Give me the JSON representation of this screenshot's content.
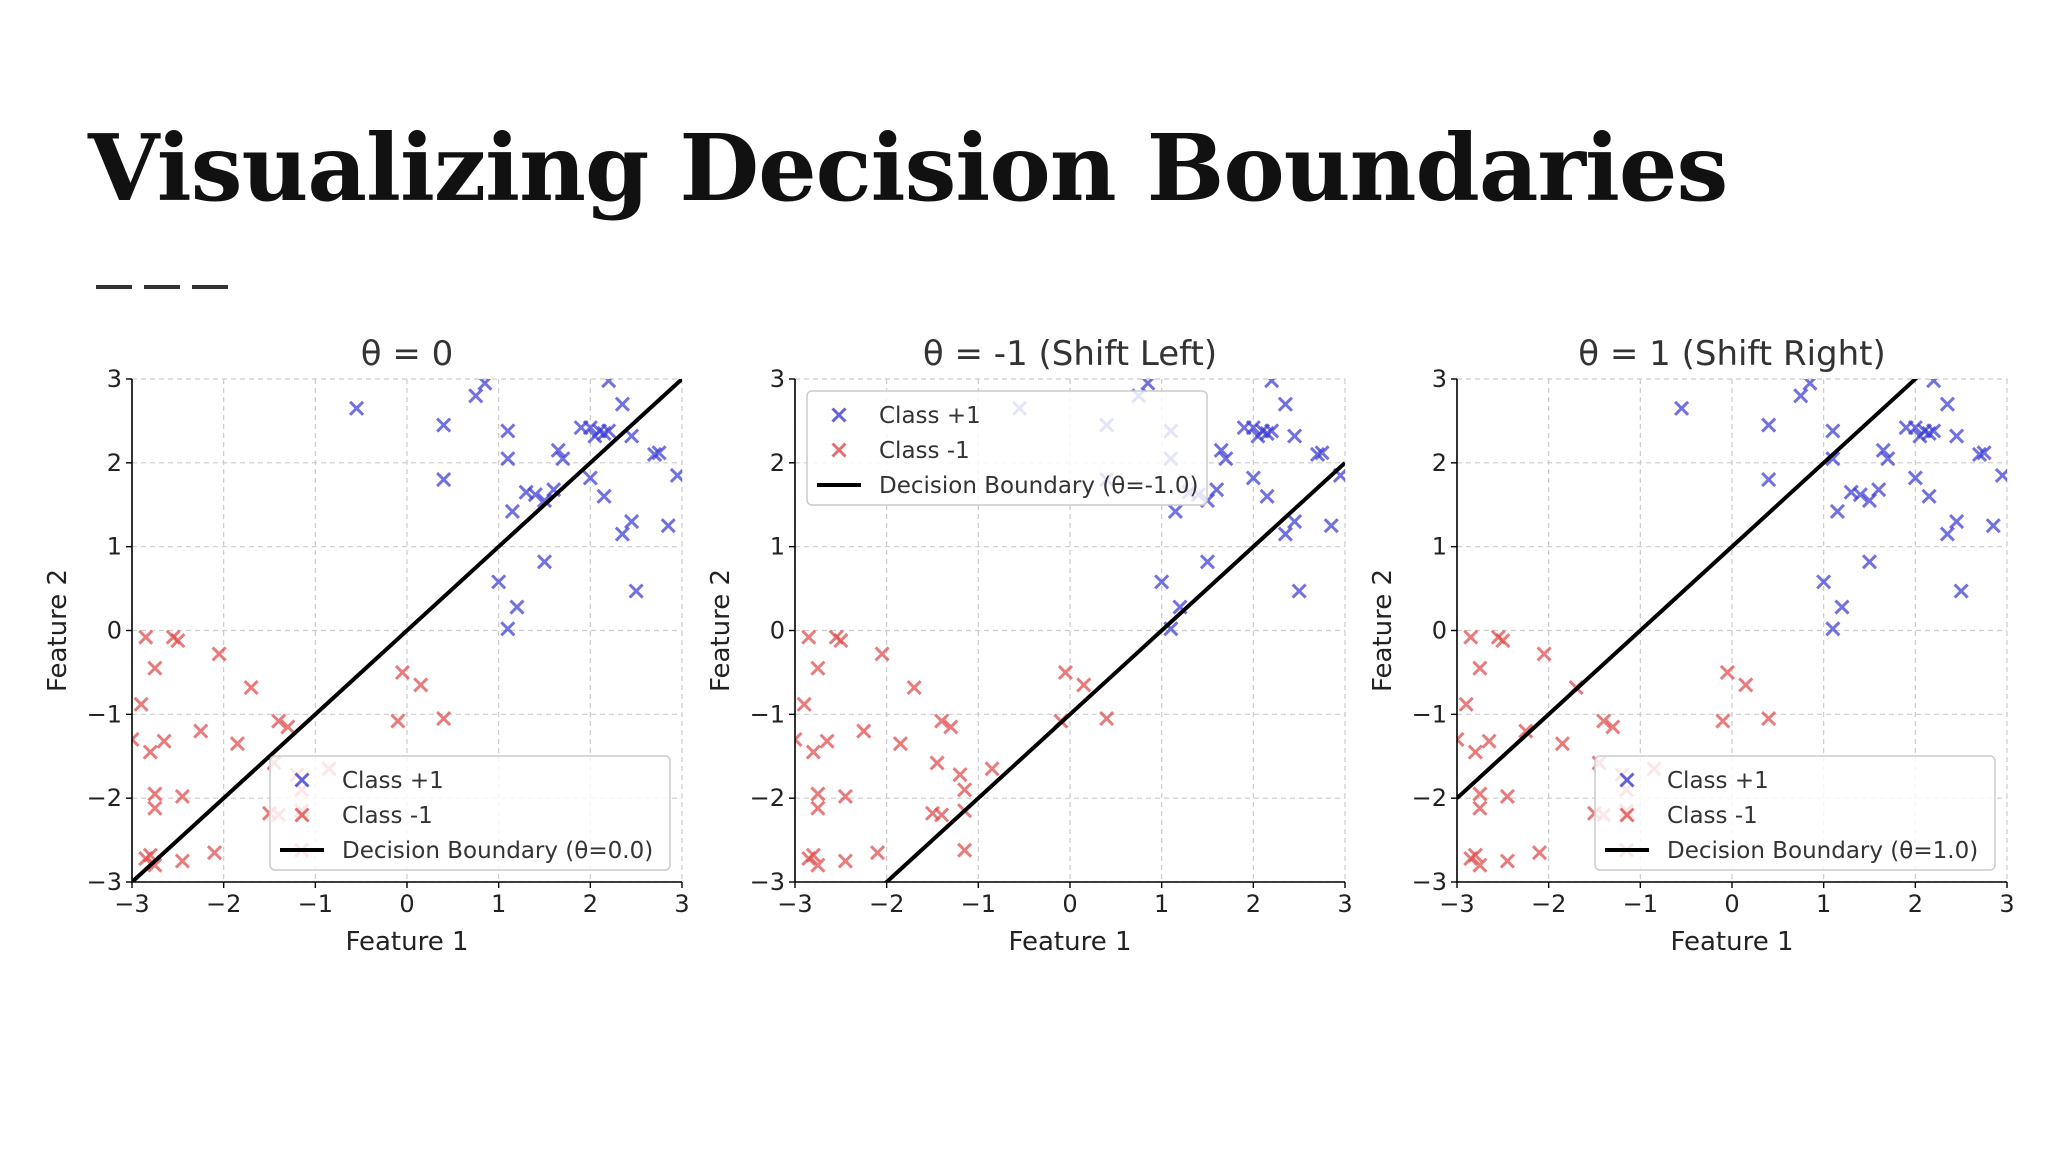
{
  "slide": {
    "title": "Visualizing Decision Boundaries"
  },
  "colors": {
    "class_pos": "#3b3bd6",
    "class_neg": "#e04a4a",
    "boundary": "#000000",
    "grid": "#cccccc",
    "title_text": "#111111"
  },
  "points": {
    "class_pos": [
      [
        -0.55,
        2.65
      ],
      [
        0.4,
        2.45
      ],
      [
        0.4,
        1.8
      ],
      [
        0.75,
        2.8
      ],
      [
        0.85,
        2.95
      ],
      [
        1.1,
        2.38
      ],
      [
        1.1,
        2.05
      ],
      [
        1.15,
        1.42
      ],
      [
        1.3,
        1.65
      ],
      [
        1.4,
        1.62
      ],
      [
        1.5,
        1.55
      ],
      [
        1.6,
        1.68
      ],
      [
        1.65,
        2.15
      ],
      [
        1.7,
        2.05
      ],
      [
        1.9,
        2.42
      ],
      [
        2.0,
        2.42
      ],
      [
        2.05,
        2.32
      ],
      [
        2.1,
        2.38
      ],
      [
        2.15,
        2.35
      ],
      [
        2.2,
        2.38
      ],
      [
        2.0,
        1.82
      ],
      [
        2.15,
        1.6
      ],
      [
        2.2,
        2.98
      ],
      [
        2.35,
        2.7
      ],
      [
        2.45,
        2.32
      ],
      [
        2.7,
        2.1
      ],
      [
        2.75,
        2.12
      ],
      [
        2.35,
        1.15
      ],
      [
        2.45,
        1.3
      ],
      [
        2.85,
        1.25
      ],
      [
        2.95,
        1.85
      ],
      [
        1.0,
        0.58
      ],
      [
        1.2,
        0.28
      ],
      [
        1.1,
        0.02
      ],
      [
        1.5,
        0.82
      ],
      [
        2.5,
        0.47
      ]
    ],
    "class_neg": [
      [
        -2.85,
        -0.08
      ],
      [
        -2.75,
        -0.45
      ],
      [
        -2.9,
        -0.88
      ],
      [
        -2.65,
        -1.32
      ],
      [
        -2.8,
        -1.45
      ],
      [
        -2.5,
        -0.12
      ],
      [
        -2.55,
        -0.08
      ],
      [
        -2.05,
        -0.28
      ],
      [
        -1.7,
        -0.68
      ],
      [
        -1.85,
        -1.35
      ],
      [
        -2.25,
        -1.2
      ],
      [
        -1.4,
        -1.08
      ],
      [
        -1.3,
        -1.15
      ],
      [
        -1.45,
        -1.58
      ],
      [
        -1.2,
        -1.72
      ],
      [
        -1.15,
        -1.9
      ],
      [
        -1.5,
        -2.18
      ],
      [
        -1.4,
        -2.2
      ],
      [
        -1.15,
        -2.15
      ],
      [
        -1.15,
        -2.62
      ],
      [
        -2.75,
        -1.95
      ],
      [
        -2.75,
        -2.12
      ],
      [
        -2.45,
        -1.98
      ],
      [
        -2.8,
        -2.68
      ],
      [
        -2.75,
        -2.8
      ],
      [
        -2.85,
        -2.72
      ],
      [
        -2.45,
        -2.75
      ],
      [
        -2.1,
        -2.65
      ],
      [
        -0.85,
        -1.65
      ],
      [
        -0.05,
        -0.5
      ],
      [
        0.15,
        -0.65
      ],
      [
        0.4,
        -1.05
      ],
      [
        -0.1,
        -1.08
      ],
      [
        -3.0,
        -1.3
      ]
    ]
  },
  "chart_data": [
    {
      "type": "scatter",
      "title": "θ = 0",
      "xlabel": "Feature 1",
      "ylabel": "Feature 2",
      "xlim": [
        -3,
        3
      ],
      "ylim": [
        -3,
        3
      ],
      "xticks": [
        -3,
        -2,
        -1,
        0,
        1,
        2,
        3
      ],
      "yticks": [
        -3,
        -2,
        -1,
        0,
        1,
        2,
        3
      ],
      "grid": true,
      "theta": 0.0,
      "boundary": "y = x + θ",
      "legend_position": "bottom-right",
      "legend": [
        "Class +1",
        "Class -1",
        "Decision Boundary (θ=0.0)"
      ]
    },
    {
      "type": "scatter",
      "title": "θ = -1 (Shift Left)",
      "xlabel": "Feature 1",
      "ylabel": "Feature 2",
      "xlim": [
        -3,
        3
      ],
      "ylim": [
        -3,
        3
      ],
      "xticks": [
        -3,
        -2,
        -1,
        0,
        1,
        2,
        3
      ],
      "yticks": [
        -3,
        -2,
        -1,
        0,
        1,
        2,
        3
      ],
      "grid": true,
      "theta": -1.0,
      "boundary": "y = x + θ",
      "legend_position": "top-left",
      "legend": [
        "Class +1",
        "Class -1",
        "Decision Boundary (θ=-1.0)"
      ]
    },
    {
      "type": "scatter",
      "title": "θ = 1 (Shift Right)",
      "xlabel": "Feature 1",
      "ylabel": "Feature 2",
      "xlim": [
        -3,
        3
      ],
      "ylim": [
        -3,
        3
      ],
      "xticks": [
        -3,
        -2,
        -1,
        0,
        1,
        2,
        3
      ],
      "yticks": [
        -3,
        -2,
        -1,
        0,
        1,
        2,
        3
      ],
      "grid": true,
      "theta": 1.0,
      "boundary": "y = x + θ",
      "legend_position": "bottom-right",
      "legend": [
        "Class +1",
        "Class -1",
        "Decision Boundary (θ=1.0)"
      ]
    }
  ]
}
